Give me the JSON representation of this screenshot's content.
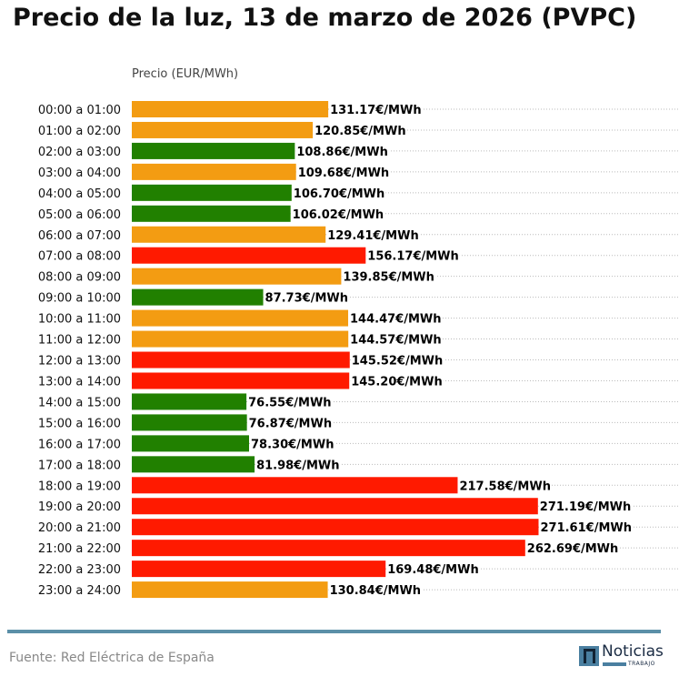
{
  "chart_data": {
    "type": "bar",
    "orientation": "horizontal",
    "title": "Precio de la luz, 13 de marzo de 2026 (PVPC)",
    "xlabel": "Precio (EUR/MWh)",
    "xlim": [
      0,
      366
    ],
    "grid": "dotted horizontal",
    "value_suffix": "€/MWh",
    "categories": [
      "00:00 a 01:00",
      "01:00 a 02:00",
      "02:00 a 03:00",
      "03:00 a 04:00",
      "04:00 a 05:00",
      "05:00 a 06:00",
      "06:00 a 07:00",
      "07:00 a 08:00",
      "08:00 a 09:00",
      "09:00 a 10:00",
      "10:00 a 11:00",
      "11:00 a 12:00",
      "12:00 a 13:00",
      "13:00 a 14:00",
      "14:00 a 15:00",
      "15:00 a 16:00",
      "16:00 a 17:00",
      "17:00 a 18:00",
      "18:00 a 19:00",
      "19:00 a 20:00",
      "20:00 a 21:00",
      "21:00 a 22:00",
      "22:00 a 23:00",
      "23:00 a 24:00"
    ],
    "values": [
      131.17,
      120.85,
      108.86,
      109.68,
      106.7,
      106.02,
      129.41,
      156.17,
      139.85,
      87.73,
      144.47,
      144.57,
      145.52,
      145.2,
      76.55,
      76.87,
      78.3,
      81.98,
      217.58,
      271.19,
      271.61,
      262.69,
      169.48,
      130.84
    ],
    "levels": [
      "mid",
      "mid",
      "low",
      "mid",
      "low",
      "low",
      "mid",
      "high",
      "mid",
      "low",
      "mid",
      "mid",
      "high",
      "high",
      "low",
      "low",
      "low",
      "low",
      "high",
      "high",
      "high",
      "high",
      "high",
      "mid"
    ],
    "colors": {
      "low": "#218000",
      "mid": "#f39c12",
      "high": "#ff1a00"
    }
  },
  "footer": {
    "source": "Fuente: Red Eléctrica de España",
    "logo_name": "Noticias",
    "logo_sub": "TRABAJO"
  }
}
